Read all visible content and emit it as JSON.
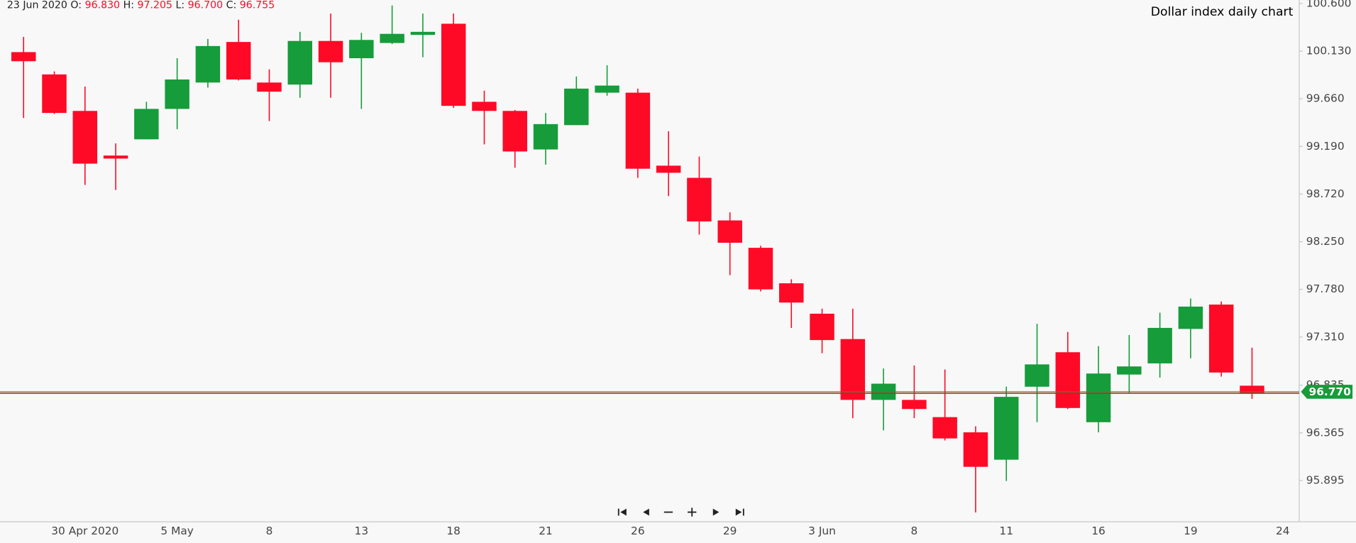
{
  "chart_data": {
    "type": "candlestick",
    "title": "Dollar index daily chart",
    "header": {
      "date": "23 Jun 2020",
      "fields": [
        {
          "name": "O:",
          "text": "96.830"
        },
        {
          "name": "H:",
          "text": "97.205"
        },
        {
          "name": "L:",
          "text": "96.700"
        },
        {
          "name": "C:",
          "text": "96.755"
        }
      ]
    },
    "categories": [
      null,
      null,
      "30 Apr 2020",
      null,
      null,
      "5 May",
      null,
      null,
      "8",
      null,
      null,
      "13",
      null,
      null,
      "18",
      null,
      null,
      "21",
      null,
      null,
      "26",
      null,
      null,
      "29",
      null,
      null,
      "3 Jun",
      null,
      null,
      "8",
      null,
      null,
      "11",
      null,
      null,
      "16",
      null,
      null,
      "19",
      null,
      null,
      "24"
    ],
    "open": [
      100.12,
      99.9,
      99.54,
      99.1,
      99.26,
      99.56,
      99.82,
      100.22,
      99.82,
      99.8,
      100.23,
      100.06,
      100.21,
      100.29,
      100.4,
      99.63,
      99.54,
      99.16,
      99.4,
      99.72,
      99.72,
      99.0,
      98.88,
      98.46,
      98.19,
      97.84,
      97.54,
      97.29,
      96.69,
      96.69,
      96.52,
      96.37,
      96.1,
      96.82,
      97.16,
      96.47,
      96.94,
      97.05,
      97.39,
      97.63,
      96.83,
      null
    ],
    "high": [
      100.27,
      99.93,
      99.78,
      99.22,
      99.63,
      100.06,
      100.25,
      100.44,
      99.95,
      100.32,
      100.5,
      100.31,
      100.58,
      100.5,
      100.5,
      99.74,
      99.55,
      99.52,
      99.88,
      99.99,
      99.76,
      99.34,
      99.09,
      98.54,
      98.21,
      97.88,
      97.59,
      97.59,
      97.0,
      97.03,
      96.99,
      96.43,
      96.82,
      97.44,
      97.36,
      97.22,
      97.33,
      97.55,
      97.69,
      97.66,
      97.205,
      null
    ],
    "low": [
      99.47,
      99.51,
      98.81,
      98.76,
      99.26,
      99.36,
      99.77,
      99.84,
      99.44,
      99.67,
      99.67,
      99.56,
      100.2,
      100.07,
      99.57,
      99.21,
      98.98,
      99.01,
      99.4,
      99.69,
      98.88,
      98.7,
      98.32,
      97.92,
      97.76,
      97.4,
      97.15,
      96.51,
      96.39,
      96.51,
      96.29,
      95.58,
      95.89,
      96.47,
      96.6,
      96.37,
      96.76,
      96.91,
      97.1,
      96.92,
      96.7,
      null
    ],
    "close": [
      100.03,
      99.52,
      99.02,
      99.07,
      99.56,
      99.85,
      100.18,
      99.85,
      99.73,
      100.23,
      100.02,
      100.24,
      100.3,
      100.32,
      99.59,
      99.54,
      99.14,
      99.41,
      99.76,
      99.79,
      98.97,
      98.93,
      98.45,
      98.24,
      97.78,
      97.65,
      97.28,
      96.69,
      96.85,
      96.6,
      96.31,
      96.03,
      96.72,
      97.04,
      96.61,
      96.95,
      97.02,
      97.4,
      97.61,
      96.96,
      96.755,
      null
    ],
    "up_color": "#169c3a",
    "down_color": "#fe0a27",
    "ylim": [
      95.488,
      100.634
    ],
    "yticks": [
      {
        "value": 100.6,
        "label": "100.600"
      },
      {
        "value": 100.13,
        "label": "100.130"
      },
      {
        "value": 99.66,
        "label": "99.660"
      },
      {
        "value": 99.19,
        "label": "99.190"
      },
      {
        "value": 98.72,
        "label": "98.720"
      },
      {
        "value": 98.25,
        "label": "98.250"
      },
      {
        "value": 97.78,
        "label": "97.780"
      },
      {
        "value": 97.31,
        "label": "97.310"
      },
      {
        "value": 96.835,
        "label": "96.835"
      },
      {
        "value": 96.365,
        "label": "96.365"
      },
      {
        "value": 95.895,
        "label": "95.895"
      }
    ],
    "last_price": {
      "value": 96.77,
      "label": "96.770",
      "color": "#169c3a"
    }
  }
}
